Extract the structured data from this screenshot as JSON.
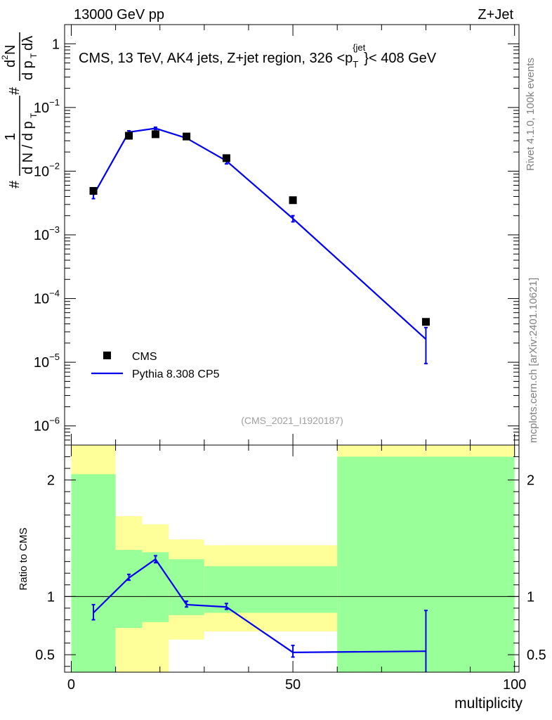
{
  "header": {
    "left": "13000 GeV pp",
    "right": "Z+Jet"
  },
  "chart_data": [
    {
      "type": "scatter",
      "title": "CMS, 13 TeV, AK4 jets, Z+jet region, 326 <p_T^{jet}< 408 GeV",
      "title_parts": {
        "prefix": "CMS, 13 TeV, AK4 jets, Z+jet region, 326 <p",
        "sub": "T",
        "sup": "{jet",
        "suffix": "}< 408 GeV"
      },
      "ylabel": "1/(dN/dp_T) d²N/(dp_T dλ)",
      "yscale": "log",
      "ylim": [
        5e-07,
        2
      ],
      "xlim": [
        -1.5,
        101
      ],
      "y_tick_labels": [
        {
          "base": "1",
          "exp": ""
        },
        {
          "base": "10",
          "exp": "−1"
        },
        {
          "base": "10",
          "exp": "−2"
        },
        {
          "base": "10",
          "exp": "−3"
        },
        {
          "base": "10",
          "exp": "−4"
        },
        {
          "base": "10",
          "exp": "−5"
        },
        {
          "base": "10",
          "exp": "−6"
        }
      ],
      "y_tick_values": [
        1,
        0.1,
        0.01,
        0.001,
        0.0001,
        1e-05,
        1e-06
      ],
      "series": [
        {
          "name": "CMS",
          "style": "markers",
          "color": "#000000",
          "x": [
            5,
            13,
            19,
            26,
            35,
            50,
            80
          ],
          "y": [
            0.0049,
            0.036,
            0.038,
            0.035,
            0.016,
            0.0035,
            4.3e-05
          ]
        },
        {
          "name": "Pythia 8.308 CP5",
          "style": "line",
          "color": "#0000ee",
          "x": [
            5,
            13,
            19,
            26,
            35,
            50,
            80
          ],
          "y": [
            0.0042,
            0.041,
            0.047,
            0.033,
            0.0145,
            0.0018,
            2.3e-05
          ],
          "err_low": [
            0.0037,
            0.039,
            0.045,
            0.032,
            0.013,
            0.0016,
            9.5e-06
          ],
          "err_high": [
            0.0046,
            0.043,
            0.049,
            0.034,
            0.016,
            0.002,
            3.5e-05
          ]
        }
      ],
      "legend": {
        "placement": "bottom-left",
        "entries": [
          "CMS",
          "Pythia 8.308 CP5"
        ]
      },
      "annotation": "(CMS_2021_I1920187)"
    },
    {
      "type": "line",
      "ylabel": "Ratio to CMS",
      "xlabel": "multiplicity",
      "ylim": [
        0.35,
        2.3
      ],
      "xlim": [
        -1.5,
        101
      ],
      "x_ticks": [
        0,
        50,
        100
      ],
      "y_ticks": [
        0.5,
        1,
        2
      ],
      "y_tick_labels": [
        "0.5",
        "1",
        "2"
      ],
      "bands": {
        "green_color": "#99ff99",
        "yellow_color": "#ffff99",
        "bins": [
          {
            "x0": 0,
            "x1": 10,
            "green": [
              0.35,
              2.05
            ],
            "yellow": [
              0.35,
              2.3
            ]
          },
          {
            "x0": 10,
            "x1": 16,
            "green": [
              0.73,
              1.4
            ],
            "yellow": [
              0.35,
              1.69
            ]
          },
          {
            "x0": 16,
            "x1": 22,
            "green": [
              0.78,
              1.38
            ],
            "yellow": [
              0.35,
              1.62
            ]
          },
          {
            "x0": 22,
            "x1": 30,
            "green": [
              0.84,
              1.32
            ],
            "yellow": [
              0.63,
              1.49
            ]
          },
          {
            "x0": 30,
            "x1": 60,
            "green": [
              0.86,
              1.26
            ],
            "yellow": [
              0.7,
              1.44
            ]
          },
          {
            "x0": 60,
            "x1": 100,
            "green": [
              0.35,
              2.2
            ],
            "yellow": [
              0.35,
              2.3
            ]
          }
        ]
      },
      "series": [
        {
          "name": "Pythia 8.308 CP5",
          "color": "#0000ee",
          "x": [
            5,
            13,
            19,
            26,
            35,
            50,
            80
          ],
          "y": [
            0.86,
            1.16,
            1.32,
            0.93,
            0.91,
            0.52,
            0.53
          ],
          "err_low": [
            0.8,
            1.14,
            1.29,
            0.91,
            0.89,
            0.48,
            0.35
          ],
          "err_high": [
            0.93,
            1.19,
            1.35,
            0.96,
            0.94,
            0.58,
            0.88
          ]
        }
      ]
    }
  ],
  "side_labels": {
    "right_top": "Rivet 4.1.0,  100k events",
    "right_bottom": "mcplots.cern.ch [arXiv:2401.10621]"
  }
}
